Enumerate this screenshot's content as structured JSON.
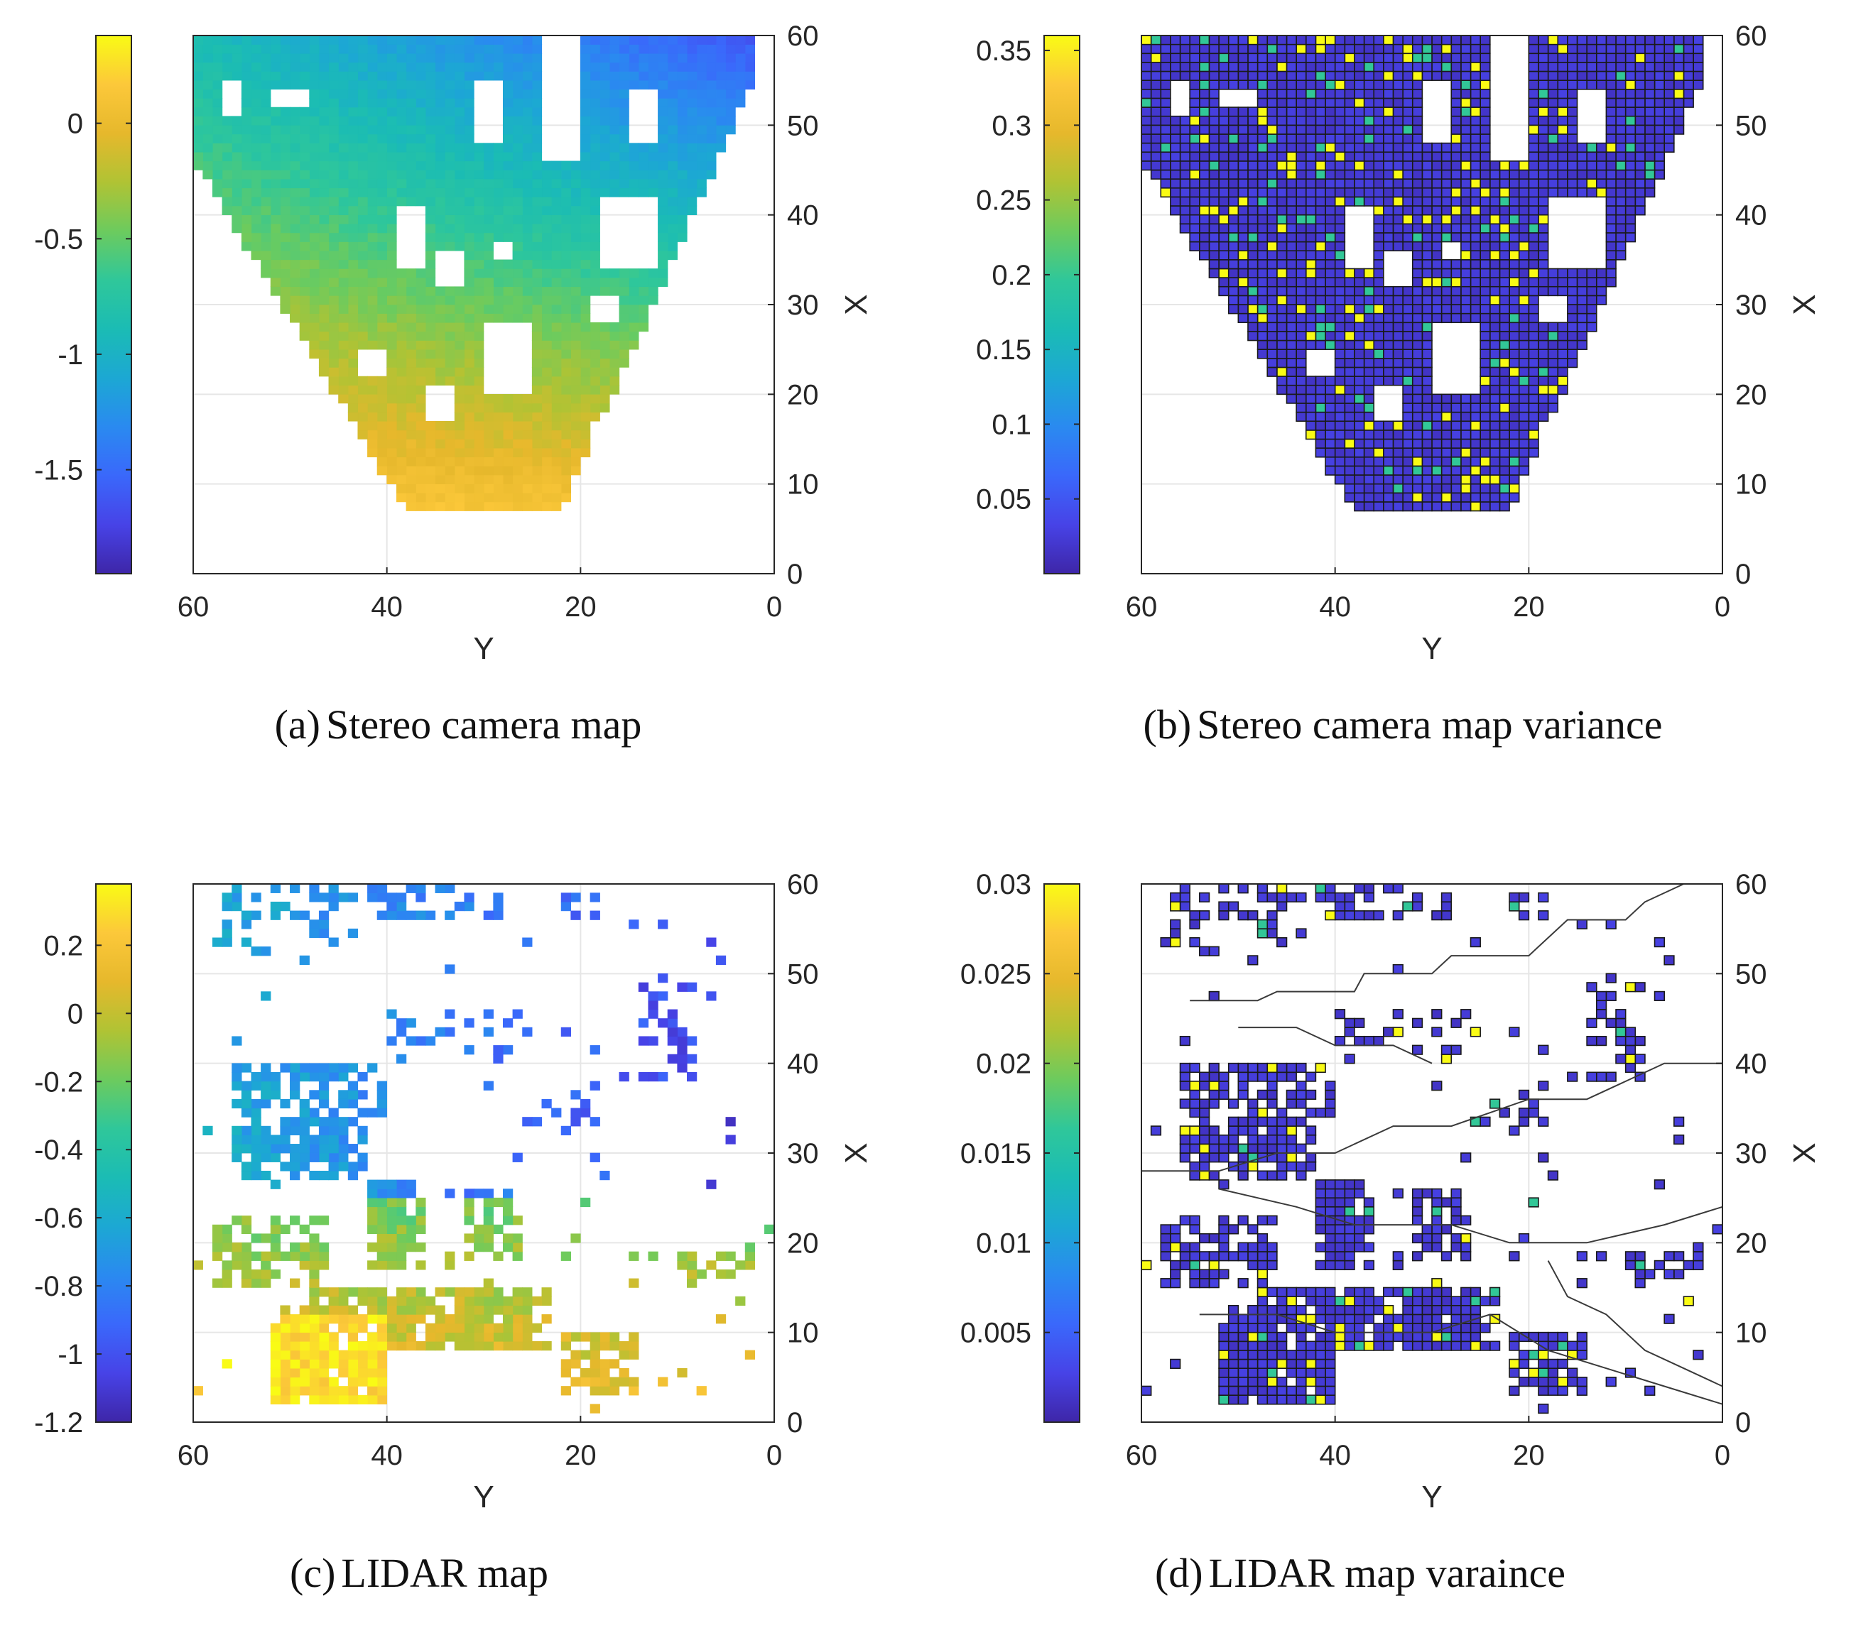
{
  "figure": {
    "colormap": [
      "#3e26a8",
      "#4743e7",
      "#3a68fb",
      "#2a8af0",
      "#1ca8d3",
      "#1bbcb4",
      "#2fc79a",
      "#6ccb5e",
      "#b0c334",
      "#e6b82c",
      "#fcc83a",
      "#f9fb15"
    ],
    "empty_color": "#ffffff",
    "grid_color": "#e6e6e6",
    "cell_edge_color": "#1a1a1a"
  },
  "chart_data": [
    {
      "type": "heatmap",
      "panel": "a",
      "caption_letter": "a",
      "caption_text": "Stereo camera map",
      "xlabel": "Y",
      "ylabel": "X",
      "x_range": [
        60,
        0
      ],
      "y_range": [
        0,
        60
      ],
      "x_ticks": [
        60,
        40,
        20,
        0
      ],
      "y_ticks": [
        0,
        10,
        20,
        30,
        40,
        50,
        60
      ],
      "colorbar_range": [
        -1.95,
        0.38
      ],
      "colorbar_ticks": [
        0,
        -0.5,
        -1,
        -1.5
      ],
      "colorbar_tick_labels": [
        "0",
        "-0.5",
        "-1",
        "-1.5"
      ],
      "coverage": "fan-shaped region widening from x≈7 (y 22–38) to x=60 (y 2–60), with scattered gaps",
      "gridded": false,
      "cell_edges": false
    },
    {
      "type": "heatmap",
      "panel": "b",
      "caption_letter": "b",
      "caption_text": "Stereo camera map variance",
      "xlabel": "Y",
      "ylabel": "X",
      "x_range": [
        60,
        0
      ],
      "y_range": [
        0,
        60
      ],
      "x_ticks": [
        60,
        40,
        20,
        0
      ],
      "y_ticks": [
        0,
        10,
        20,
        30,
        40,
        50,
        60
      ],
      "colorbar_range": [
        0.0,
        0.36
      ],
      "colorbar_ticks": [
        0.35,
        0.3,
        0.25,
        0.2,
        0.15,
        0.1,
        0.05
      ],
      "colorbar_tick_labels": [
        "0.35",
        "0.3",
        "0.25",
        "0.2",
        "0.15",
        "0.1",
        "0.05"
      ],
      "coverage": "same fan-shaped region as (a); mostly near-zero variance with sparse high-variance cells",
      "gridded": true,
      "cell_edges": true
    },
    {
      "type": "heatmap",
      "panel": "c",
      "caption_letter": "c",
      "caption_text": "LIDAR map",
      "xlabel": "Y",
      "ylabel": "X",
      "x_range": [
        60,
        0
      ],
      "y_range": [
        0,
        60
      ],
      "x_ticks": [
        60,
        40,
        20,
        0
      ],
      "y_ticks": [
        0,
        10,
        20,
        30,
        40,
        50,
        60
      ],
      "colorbar_range": [
        -1.2,
        0.38
      ],
      "colorbar_ticks": [
        0.2,
        0,
        -0.2,
        -0.4,
        -0.6,
        -0.8,
        -1,
        -1.2
      ],
      "colorbar_tick_labels": [
        "0.2",
        "0",
        "-0.2",
        "-0.4",
        "-0.6",
        "-0.8",
        "-1",
        "-1.2"
      ],
      "coverage": "sparse irregular patches; dense elevated band near x 3–15, y 15–50",
      "gridded": false,
      "cell_edges": false
    },
    {
      "type": "heatmap",
      "panel": "d",
      "caption_letter": "d",
      "caption_text": "LIDAR map varaince",
      "xlabel": "Y",
      "ylabel": "X",
      "x_range": [
        60,
        0
      ],
      "y_range": [
        0,
        60
      ],
      "x_ticks": [
        60,
        40,
        20,
        0
      ],
      "y_ticks": [
        0,
        10,
        20,
        30,
        40,
        50,
        60
      ],
      "colorbar_range": [
        0.0,
        0.03
      ],
      "colorbar_ticks": [
        0.03,
        0.025,
        0.02,
        0.015,
        0.01,
        0.005
      ],
      "colorbar_tick_labels": [
        "0.03",
        "0.025",
        "0.02",
        "0.015",
        "0.01",
        "0.005"
      ],
      "coverage": "same sparse region as (c) with gridded cells plus thin contour lines",
      "gridded": true,
      "cell_edges": true
    }
  ]
}
